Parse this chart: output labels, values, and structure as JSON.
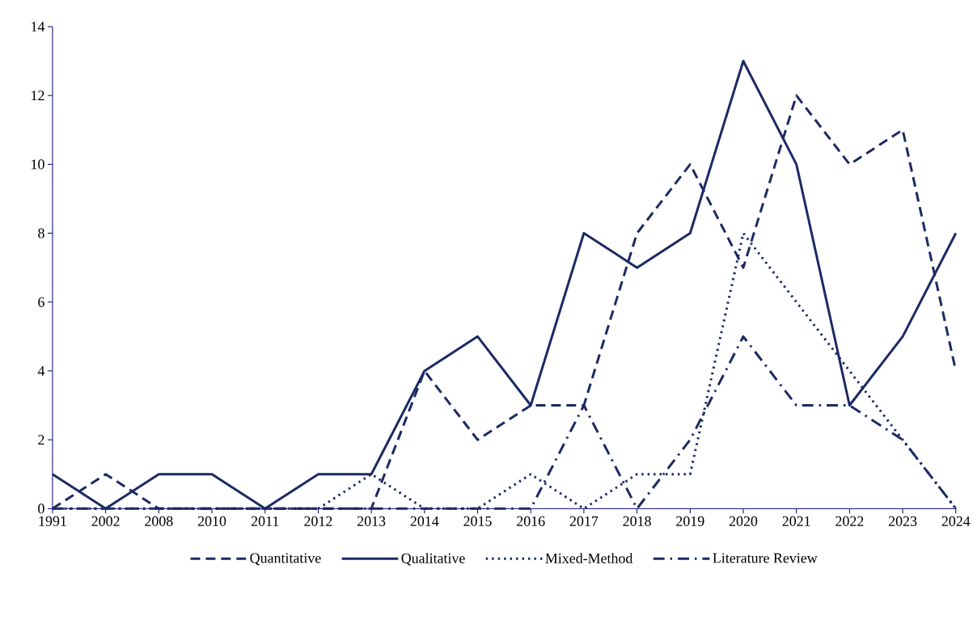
{
  "chart_data": {
    "type": "line",
    "categories": [
      "1991",
      "2002",
      "2008",
      "2010",
      "2011",
      "2012",
      "2013",
      "2014",
      "2015",
      "2016",
      "2017",
      "2018",
      "2019",
      "2020",
      "2021",
      "2022",
      "2023",
      "2024"
    ],
    "series": [
      {
        "name": "Quantitative",
        "color": "#1b2a64",
        "line_style": "dashed",
        "values": [
          0,
          1,
          0,
          0,
          0,
          0,
          0,
          4,
          2,
          3,
          3,
          8,
          10,
          7,
          12,
          10,
          11,
          4
        ]
      },
      {
        "name": "Qualitative",
        "color": "#1b2a64",
        "line_style": "solid",
        "values": [
          1,
          0,
          1,
          1,
          0,
          1,
          1,
          4,
          5,
          3,
          8,
          7,
          8,
          13,
          10,
          3,
          5,
          8
        ]
      },
      {
        "name": "Mixed-Method",
        "color": "#1b2a64",
        "line_style": "dotted",
        "values": [
          0,
          0,
          0,
          0,
          0,
          0,
          1,
          0,
          0,
          1,
          0,
          1,
          1,
          8,
          6,
          4,
          2,
          0
        ]
      },
      {
        "name": "Literature Review",
        "color": "#1b2a64",
        "line_style": "dashdot",
        "values": [
          0,
          0,
          0,
          0,
          0,
          0,
          0,
          0,
          0,
          0,
          3,
          0,
          2,
          5,
          3,
          3,
          2,
          0
        ]
      }
    ],
    "ylim": [
      0,
      14
    ],
    "yticks": [
      0,
      2,
      4,
      6,
      8,
      10,
      12,
      14
    ],
    "grid": false,
    "legend": "bottom",
    "marker": "none"
  }
}
